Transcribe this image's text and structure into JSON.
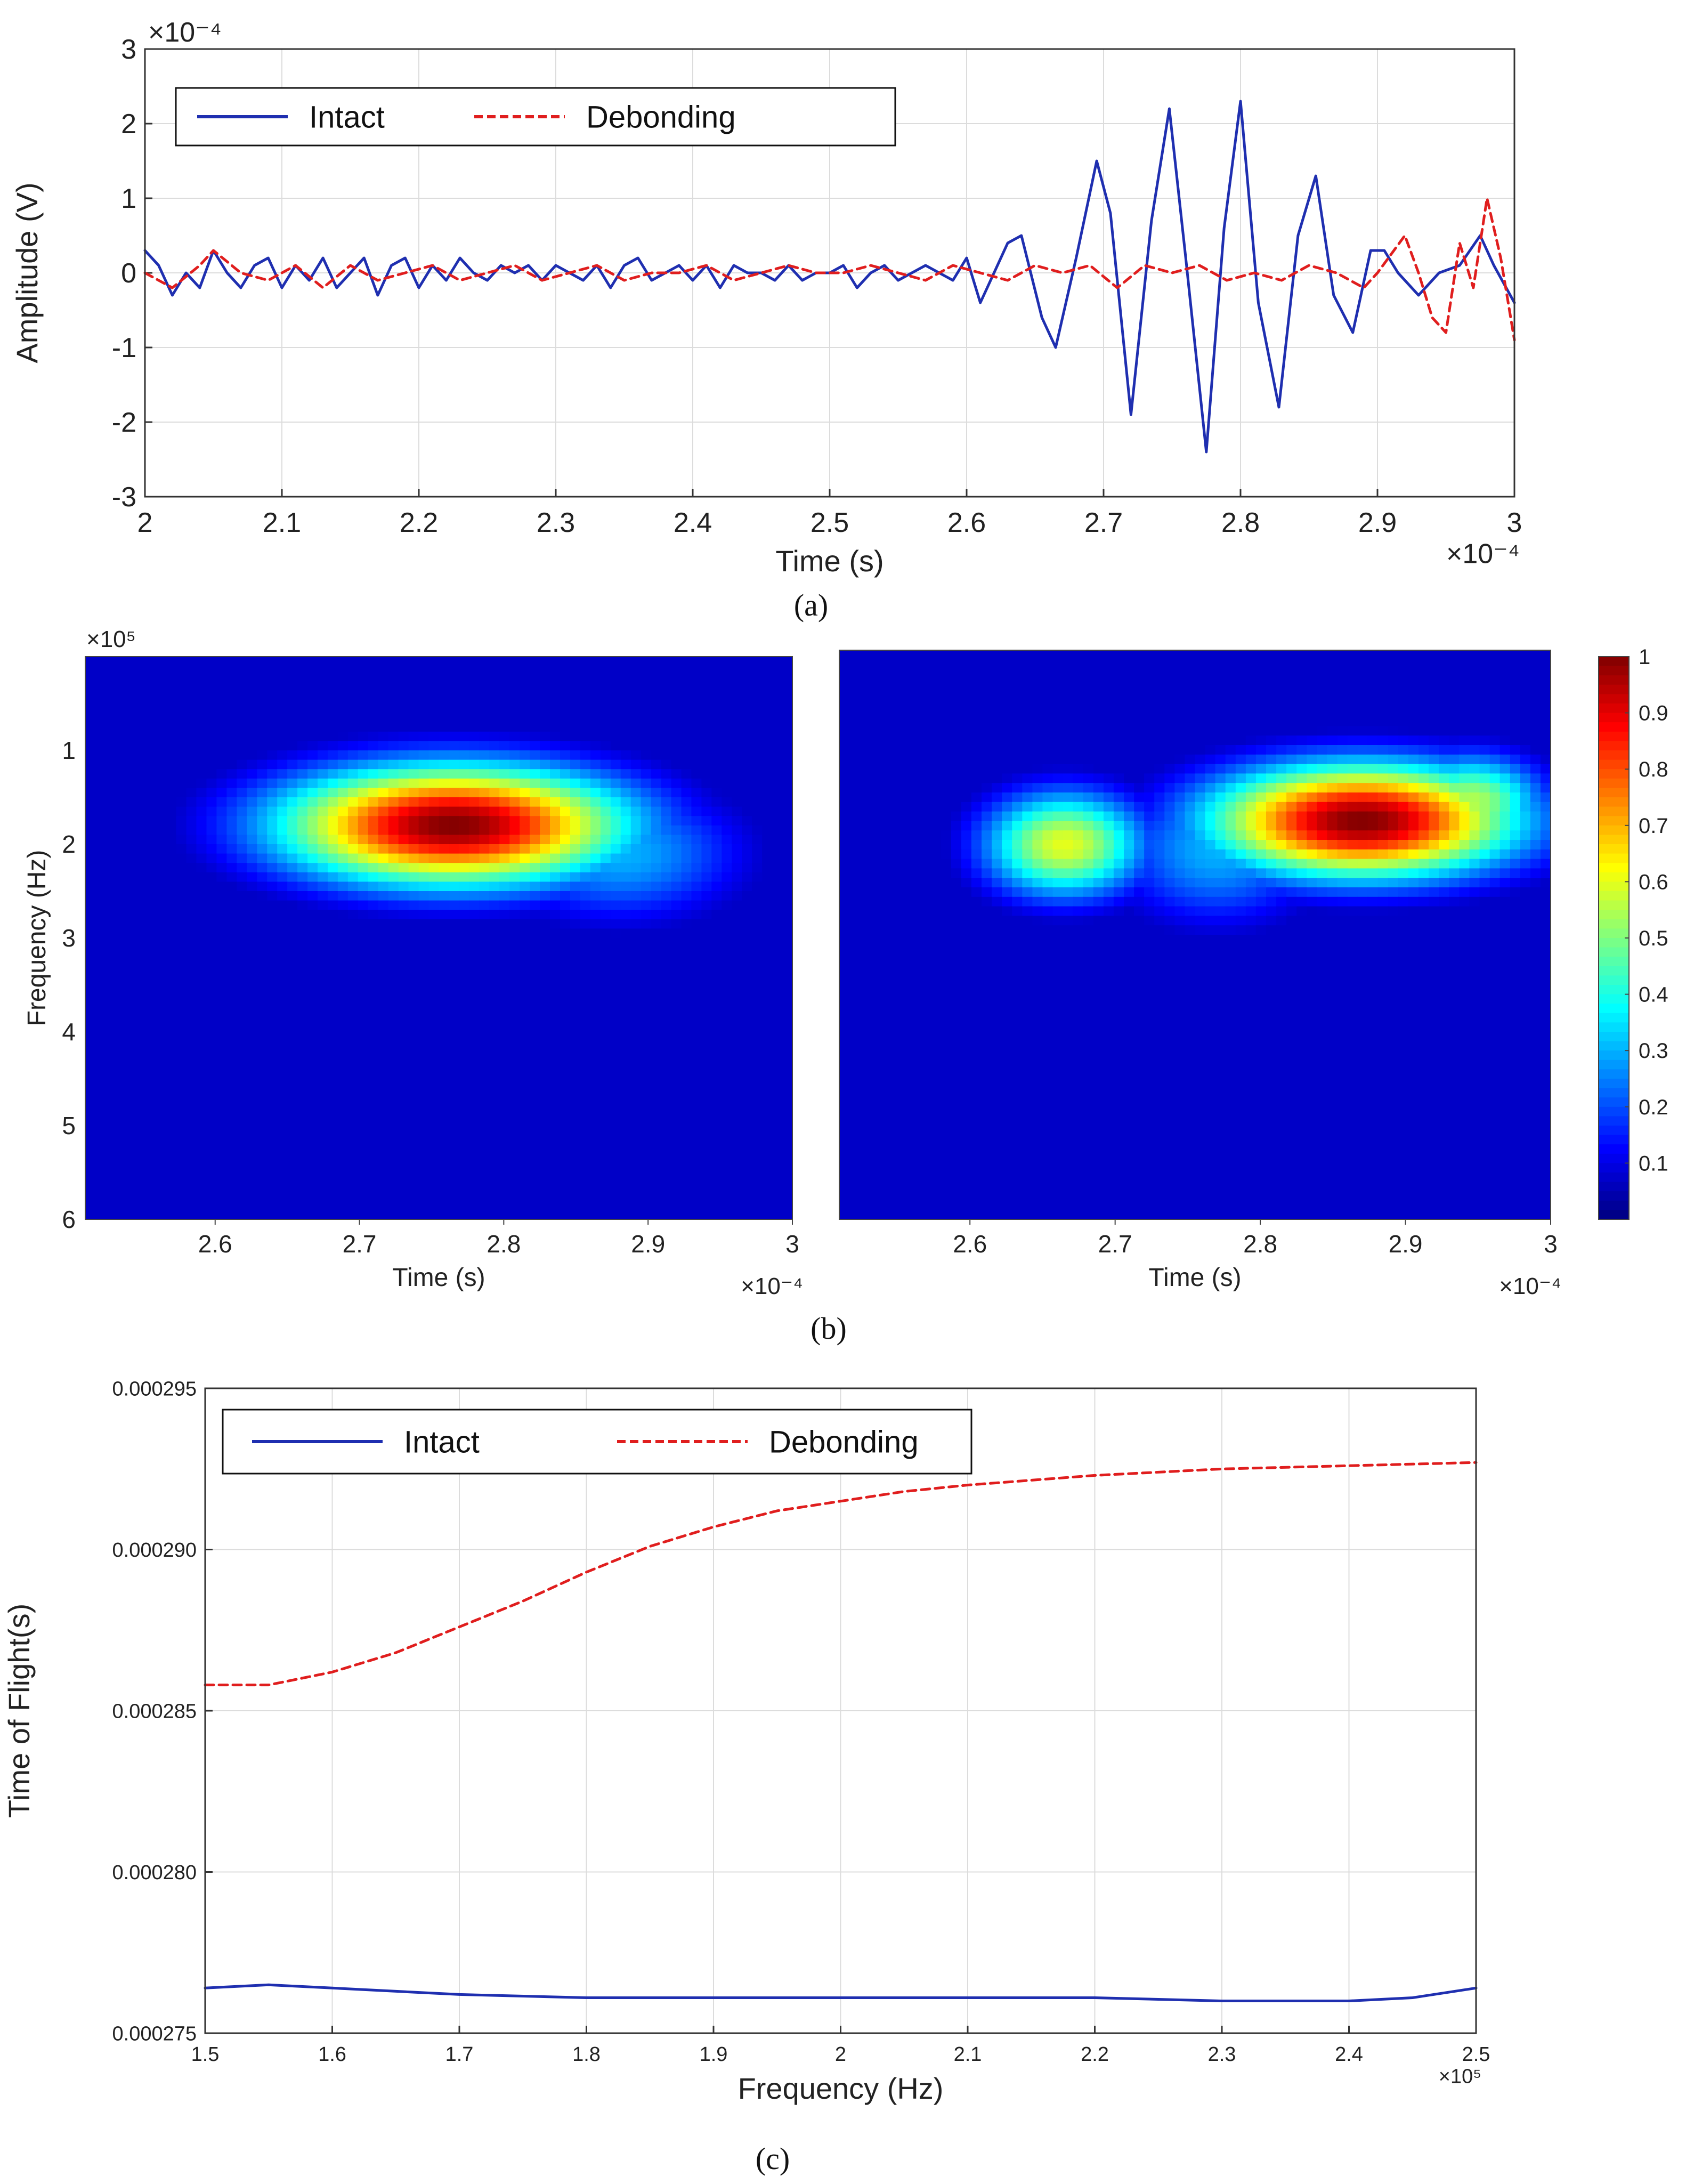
{
  "captions": {
    "a": "(a)",
    "b": "(b)",
    "c": "(c)"
  },
  "colors": {
    "intact": "#1f2fb0",
    "debonding": "#e01e1e",
    "grid": "#dcdcdc",
    "axis": "#333333",
    "text": "#222222"
  },
  "chart_data": [
    {
      "id": "a",
      "type": "line",
      "title": "",
      "xlabel": "Time (s)",
      "ylabel": "Amplitude (V)",
      "x_multiplier": "×10⁻⁴",
      "y_multiplier": "×10⁻⁴",
      "xlim": [
        2,
        3
      ],
      "ylim": [
        -3,
        3
      ],
      "xticks": [
        2,
        2.1,
        2.2,
        2.3,
        2.4,
        2.5,
        2.6,
        2.7,
        2.8,
        2.9,
        3
      ],
      "xtick_labels": [
        "2",
        "2.1",
        "2.2",
        "2.3",
        "2.4",
        "2.5",
        "2.6",
        "2.7",
        "2.8",
        "2.9",
        "3"
      ],
      "yticks": [
        3,
        2,
        1,
        0,
        -1,
        -2,
        -3
      ],
      "ytick_labels": [
        "3",
        "2",
        "1",
        "0",
        "-1",
        "-2",
        "-3"
      ],
      "grid": true,
      "legend": "top-left",
      "series": [
        {
          "name": "Intact",
          "style": "solid",
          "x": [
            2.0,
            2.01,
            2.02,
            2.03,
            2.04,
            2.05,
            2.06,
            2.07,
            2.08,
            2.09,
            2.1,
            2.11,
            2.12,
            2.13,
            2.14,
            2.15,
            2.16,
            2.17,
            2.18,
            2.19,
            2.2,
            2.21,
            2.22,
            2.23,
            2.24,
            2.25,
            2.26,
            2.27,
            2.28,
            2.29,
            2.3,
            2.31,
            2.32,
            2.33,
            2.34,
            2.35,
            2.36,
            2.37,
            2.38,
            2.39,
            2.4,
            2.41,
            2.42,
            2.43,
            2.44,
            2.45,
            2.46,
            2.47,
            2.48,
            2.49,
            2.5,
            2.51,
            2.52,
            2.53,
            2.54,
            2.55,
            2.56,
            2.57,
            2.58,
            2.59,
            2.6,
            2.61,
            2.615,
            2.63,
            2.64,
            2.655,
            2.665,
            2.68,
            2.695,
            2.705,
            2.72,
            2.735,
            2.748,
            2.76,
            2.775,
            2.788,
            2.8,
            2.813,
            2.828,
            2.842,
            2.855,
            2.868,
            2.882,
            2.895,
            2.905,
            2.915,
            2.93,
            2.945,
            2.96,
            2.975,
            2.985,
            3.0
          ],
          "values": [
            0.3,
            0.1,
            -0.3,
            0.0,
            -0.2,
            0.3,
            0.0,
            -0.2,
            0.1,
            0.2,
            -0.2,
            0.1,
            -0.1,
            0.2,
            -0.2,
            0.0,
            0.2,
            -0.3,
            0.1,
            0.2,
            -0.2,
            0.1,
            -0.1,
            0.2,
            0.0,
            -0.1,
            0.1,
            0.0,
            0.1,
            -0.1,
            0.1,
            0.0,
            -0.1,
            0.1,
            -0.2,
            0.1,
            0.2,
            -0.1,
            0.0,
            0.1,
            -0.1,
            0.1,
            -0.2,
            0.1,
            0.0,
            0.0,
            -0.1,
            0.1,
            -0.1,
            0.0,
            0.0,
            0.1,
            -0.2,
            0.0,
            0.1,
            -0.1,
            0.0,
            0.1,
            0.0,
            -0.1,
            0.2,
            -0.4,
            -0.2,
            0.4,
            0.5,
            -0.6,
            -1.0,
            0.2,
            1.5,
            0.8,
            -1.9,
            0.7,
            2.2,
            0.2,
            -2.4,
            0.6,
            2.3,
            -0.4,
            -1.8,
            0.5,
            1.3,
            -0.3,
            -0.8,
            0.3,
            0.3,
            0.0,
            -0.3,
            0.0,
            0.1,
            0.5,
            0.1,
            -0.4
          ]
        },
        {
          "name": "Debonding",
          "style": "dashed",
          "x": [
            2.0,
            2.02,
            2.04,
            2.05,
            2.07,
            2.09,
            2.11,
            2.13,
            2.15,
            2.17,
            2.19,
            2.21,
            2.23,
            2.25,
            2.27,
            2.29,
            2.31,
            2.33,
            2.35,
            2.37,
            2.39,
            2.41,
            2.43,
            2.45,
            2.47,
            2.49,
            2.51,
            2.53,
            2.55,
            2.57,
            2.59,
            2.61,
            2.63,
            2.65,
            2.67,
            2.69,
            2.71,
            2.73,
            2.75,
            2.77,
            2.79,
            2.81,
            2.83,
            2.85,
            2.87,
            2.89,
            2.9,
            2.92,
            2.93,
            2.94,
            2.95,
            2.96,
            2.97,
            2.98,
            2.99,
            3.0
          ],
          "values": [
            0.0,
            -0.2,
            0.1,
            0.3,
            0.0,
            -0.1,
            0.1,
            -0.2,
            0.1,
            -0.1,
            0.0,
            0.1,
            -0.1,
            0.0,
            0.1,
            -0.1,
            0.0,
            0.1,
            -0.1,
            0.0,
            0.0,
            0.1,
            -0.1,
            0.0,
            0.1,
            0.0,
            0.0,
            0.1,
            0.0,
            -0.1,
            0.1,
            0.0,
            -0.1,
            0.1,
            0.0,
            0.1,
            -0.2,
            0.1,
            0.0,
            0.1,
            -0.1,
            0.0,
            -0.1,
            0.1,
            0.0,
            -0.2,
            0.0,
            0.5,
            0.0,
            -0.6,
            -0.8,
            0.4,
            -0.2,
            1.0,
            0.2,
            -0.9
          ]
        }
      ]
    },
    {
      "id": "b-left",
      "type": "heatmap",
      "title": "",
      "xlabel": "Time (s)",
      "ylabel": "Frequency (Hz)",
      "x_multiplier": "×10⁻⁴",
      "y_multiplier": "×10⁵",
      "xlim": [
        2.51,
        3.0
      ],
      "ylim": [
        0,
        6
      ],
      "xticks": [
        2.6,
        2.7,
        2.8,
        2.9,
        3
      ],
      "xtick_labels": [
        "2.6",
        "2.7",
        "2.8",
        "2.9",
        "3"
      ],
      "yticks": [
        1,
        2,
        3,
        4,
        5,
        6
      ],
      "ytick_labels": [
        "1",
        "2",
        "3",
        "4",
        "5",
        "6"
      ],
      "blobs": [
        {
          "t": 2.765,
          "f": 1.8,
          "st": 0.085,
          "sf": 0.45,
          "amp": 1.0
        },
        {
          "t": 2.88,
          "f": 2.1,
          "st": 0.06,
          "sf": 0.5,
          "amp": 0.3
        }
      ]
    },
    {
      "id": "b-right",
      "type": "heatmap",
      "title": "",
      "xlabel": "Time (s)",
      "ylabel": "",
      "x_multiplier": "×10⁻⁴",
      "xlim": [
        2.51,
        3.0
      ],
      "ylim": [
        0,
        6
      ],
      "xticks": [
        2.6,
        2.7,
        2.8,
        2.9,
        3
      ],
      "xtick_labels": [
        "2.6",
        "2.7",
        "2.8",
        "2.9",
        "3"
      ],
      "blobs": [
        {
          "t": 2.87,
          "f": 1.8,
          "st": 0.075,
          "sf": 0.42,
          "amp": 1.0
        },
        {
          "t": 2.945,
          "f": 1.6,
          "st": 0.035,
          "sf": 0.35,
          "amp": 0.55
        },
        {
          "t": 2.665,
          "f": 2.05,
          "st": 0.04,
          "sf": 0.4,
          "amp": 0.6
        },
        {
          "t": 2.77,
          "f": 2.1,
          "st": 0.05,
          "sf": 0.55,
          "amp": 0.3
        }
      ]
    },
    {
      "id": "b-colorbar",
      "type": "colorbar",
      "range": [
        0,
        1
      ],
      "tick_values": [
        1,
        0.9,
        0.8,
        0.7,
        0.6,
        0.5,
        0.4,
        0.3,
        0.2,
        0.1
      ],
      "tick_labels": [
        "1",
        "0.9",
        "0.8",
        "0.7",
        "0.6",
        "0.5",
        "0.4",
        "0.3",
        "0.2",
        "0.1"
      ]
    },
    {
      "id": "c",
      "type": "line",
      "title": "",
      "xlabel": "Frequency (Hz)",
      "ylabel": "Time of Flight(s)",
      "x_multiplier": "×10⁵",
      "xlim": [
        1.5,
        2.5
      ],
      "ylim": [
        0.000275,
        0.000295
      ],
      "xticks": [
        1.5,
        1.6,
        1.7,
        1.8,
        1.9,
        2,
        2.1,
        2.2,
        2.3,
        2.4,
        2.5
      ],
      "xtick_labels": [
        "1.5",
        "1.6",
        "1.7",
        "1.8",
        "1.9",
        "2",
        "2.1",
        "2.2",
        "2.3",
        "2.4",
        "2.5"
      ],
      "yticks": [
        0.000295,
        0.00029,
        0.000285,
        0.00028,
        0.000275
      ],
      "ytick_labels": [
        "0.000295",
        "0.000290",
        "0.000285",
        "0.000280",
        "0.000275"
      ],
      "grid": true,
      "legend": "top-left",
      "series": [
        {
          "name": "Intact",
          "style": "solid",
          "x": [
            1.5,
            1.55,
            1.6,
            1.7,
            1.8,
            1.9,
            2.0,
            2.1,
            2.2,
            2.3,
            2.35,
            2.4,
            2.45,
            2.5
          ],
          "values": [
            0.0002764,
            0.0002765,
            0.0002764,
            0.0002762,
            0.0002761,
            0.0002761,
            0.0002761,
            0.0002761,
            0.0002761,
            0.000276,
            0.000276,
            0.000276,
            0.0002761,
            0.0002764
          ]
        },
        {
          "name": "Debonding",
          "style": "dashed",
          "x": [
            1.5,
            1.55,
            1.6,
            1.65,
            1.7,
            1.75,
            1.8,
            1.85,
            1.9,
            1.95,
            2.0,
            2.05,
            2.1,
            2.2,
            2.3,
            2.4,
            2.5
          ],
          "values": [
            0.0002858,
            0.0002858,
            0.0002862,
            0.0002868,
            0.0002876,
            0.0002884,
            0.0002893,
            0.0002901,
            0.0002907,
            0.0002912,
            0.0002915,
            0.0002918,
            0.000292,
            0.0002923,
            0.0002925,
            0.0002926,
            0.0002927
          ]
        }
      ]
    }
  ]
}
